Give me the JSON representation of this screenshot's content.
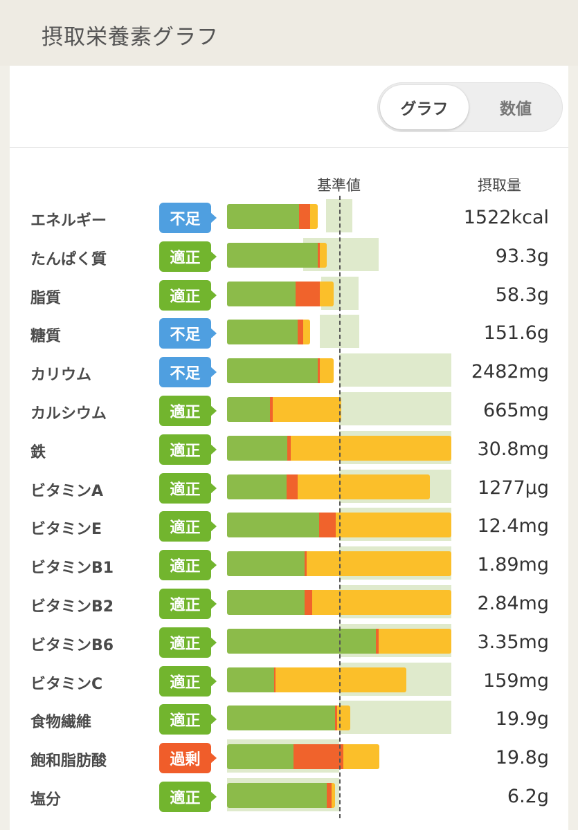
{
  "header": {
    "title": "摂取栄養素グラフ"
  },
  "toggle": {
    "graph_label": "グラフ",
    "value_label": "数値"
  },
  "columns": {
    "reference": "基準値",
    "intake": "摂取量"
  },
  "colors": {
    "bar_green": "#8cbb4a",
    "bar_red": "#f0632c",
    "bar_yellow": "#fbbf2a",
    "range_bg": "#dfeacc",
    "badge_ok": "#72b52e",
    "badge_low": "#4f9fe0",
    "badge_over": "#f05d2a"
  },
  "chart_data": {
    "type": "bar",
    "categories": [
      "エネルギー",
      "たんぱく質",
      "脂質",
      "糖質",
      "カリウム",
      "カルシウム",
      "鉄",
      "ビタミンA",
      "ビタミンE",
      "ビタミンB1",
      "ビタミンB2",
      "ビタミンB6",
      "ビタミンC",
      "食物繊維",
      "飽和脂肪酸",
      "塩分"
    ],
    "reference_line": "基準値",
    "items": [
      {
        "name": "エネルギー",
        "status": "不足",
        "status_type": "low",
        "value": "1522kcal",
        "g": 0.64,
        "r": 0.1,
        "y": 0.07,
        "range": [
          0.88,
          1.12
        ]
      },
      {
        "name": "たんぱく質",
        "status": "適正",
        "status_type": "ok",
        "value": "93.3g",
        "g": 0.81,
        "r": 0.02,
        "y": 0.06,
        "range": [
          0.68,
          1.35
        ]
      },
      {
        "name": "脂質",
        "status": "適正",
        "status_type": "ok",
        "value": "58.3g",
        "g": 0.61,
        "r": 0.22,
        "y": 0.12,
        "range": [
          0.84,
          1.17
        ]
      },
      {
        "name": "糖質",
        "status": "不足",
        "status_type": "low",
        "value": "151.6g",
        "g": 0.63,
        "r": 0.05,
        "y": 0.06,
        "range": [
          0.83,
          1.18
        ]
      },
      {
        "name": "カリウム",
        "status": "不足",
        "status_type": "low",
        "value": "2482mg",
        "g": 0.81,
        "r": 0.02,
        "y": 0.12,
        "range": [
          1.0,
          2.0
        ]
      },
      {
        "name": "カルシウム",
        "status": "適正",
        "status_type": "ok",
        "value": "665mg",
        "g": 0.38,
        "r": 0.03,
        "y": 0.61,
        "range": [
          1.0,
          2.0
        ]
      },
      {
        "name": "鉄",
        "status": "適正",
        "status_type": "ok",
        "value": "30.8mg",
        "g": 0.54,
        "r": 0.03,
        "y": 1.43,
        "range": [
          1.0,
          2.0
        ]
      },
      {
        "name": "ビタミンA",
        "status": "適正",
        "status_type": "ok",
        "value": "1277μg",
        "g": 0.53,
        "r": 0.1,
        "y": 1.18,
        "range": [
          1.0,
          2.0
        ]
      },
      {
        "name": "ビタミンE",
        "status": "適正",
        "status_type": "ok",
        "value": "12.4mg",
        "g": 0.82,
        "r": 0.15,
        "y": 1.03,
        "range": [
          1.0,
          2.0
        ]
      },
      {
        "name": "ビタミンB1",
        "status": "適正",
        "status_type": "ok",
        "value": "1.89mg",
        "g": 0.69,
        "r": 0.02,
        "y": 1.29,
        "range": [
          1.0,
          2.0
        ]
      },
      {
        "name": "ビタミンB2",
        "status": "適正",
        "status_type": "ok",
        "value": "2.84mg",
        "g": 0.69,
        "r": 0.07,
        "y": 1.24,
        "range": [
          1.0,
          2.0
        ]
      },
      {
        "name": "ビタミンB6",
        "status": "適正",
        "status_type": "ok",
        "value": "3.35mg",
        "g": 1.33,
        "r": 0.02,
        "y": 0.65,
        "range": [
          1.0,
          2.0
        ]
      },
      {
        "name": "ビタミンC",
        "status": "適正",
        "status_type": "ok",
        "value": "159mg",
        "g": 0.42,
        "r": 0.01,
        "y": 1.17,
        "range": [
          1.0,
          2.0
        ]
      },
      {
        "name": "食物繊維",
        "status": "適正",
        "status_type": "ok",
        "value": "19.9g",
        "g": 0.96,
        "r": 0.02,
        "y": 0.12,
        "range": [
          1.0,
          2.0
        ]
      },
      {
        "name": "飽和脂肪酸",
        "status": "過剰",
        "status_type": "over",
        "value": "19.8g",
        "g": 0.59,
        "r": 0.45,
        "y": 0.32,
        "range": [
          0.0,
          1.0
        ]
      },
      {
        "name": "塩分",
        "status": "適正",
        "status_type": "ok",
        "value": "6.2g",
        "g": 0.89,
        "r": 0.04,
        "y": 0.03,
        "range": [
          0.0,
          1.0
        ]
      }
    ],
    "xlim": [
      0,
      2.0
    ]
  }
}
